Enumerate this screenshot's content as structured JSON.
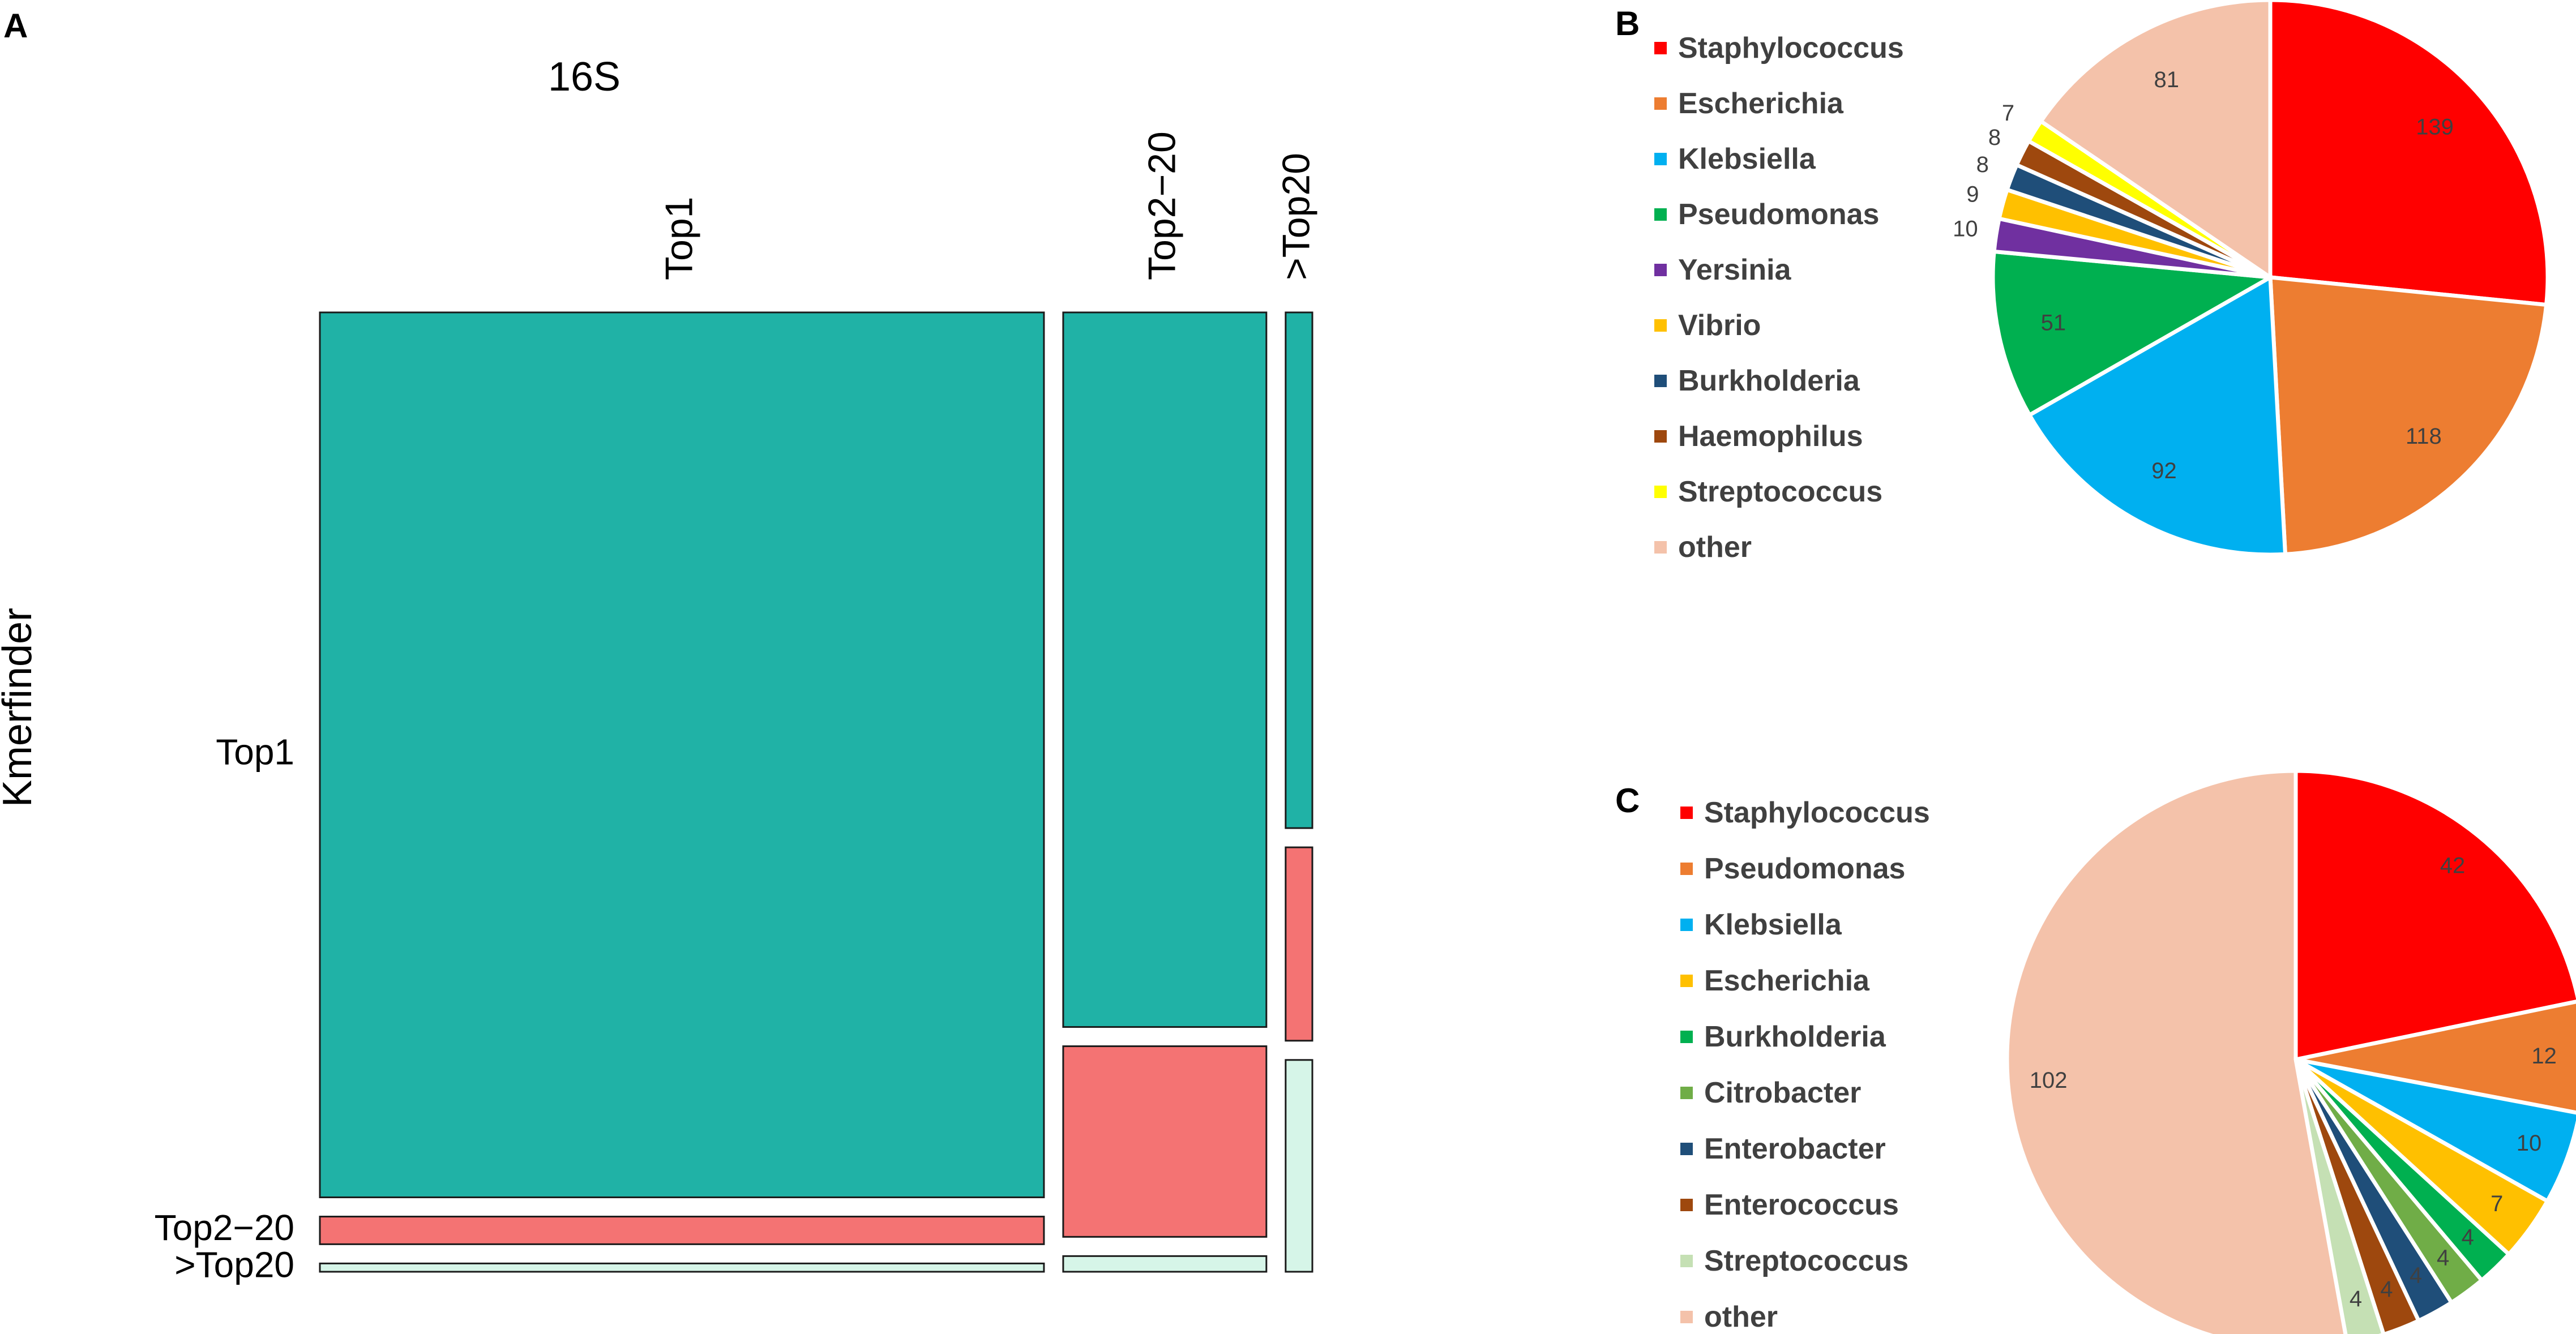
{
  "chart_data": [
    {
      "panel_label": "A",
      "type": "mosaic",
      "title": "16S",
      "ylabel": "Kmerfinder",
      "column_categories": [
        "Top1",
        "Top2−20",
        ">Top20"
      ],
      "row_categories": [
        "Top1",
        "Top2−20",
        ">Top20"
      ],
      "column_shares": [
        0.759,
        0.213,
        0.028
      ],
      "row_shares_by_column": [
        [
          0.961,
          0.03,
          0.009
        ],
        [
          0.776,
          0.207,
          0.017
        ],
        [
          0.56,
          0.21,
          0.23
        ]
      ],
      "colors": {
        "Top1": "#20b2a6",
        "Top2−20": "#f47373",
        ">Top20": "#d6f5e8"
      }
    },
    {
      "panel_label": "B",
      "type": "pie",
      "categories": [
        "Staphylococcus",
        "Escherichia",
        "Klebsiella",
        "Pseudomonas",
        "Yersinia",
        "Vibrio",
        "Burkholderia",
        "Haemophilus",
        "Streptococcus",
        "other"
      ],
      "values": [
        139,
        118,
        92,
        51,
        10,
        9,
        8,
        8,
        7,
        81
      ],
      "labels": [
        "139",
        "118",
        "92",
        "51",
        "10",
        "9",
        "8",
        "8",
        "7",
        "81"
      ],
      "colors": [
        "#ff0000",
        "#ed7d31",
        "#00b0f0",
        "#00b050",
        "#7030a0",
        "#ffc000",
        "#1f4e79",
        "#9e480e",
        "#ffff00",
        "#f4c2aa"
      ],
      "legend_position": "left"
    },
    {
      "panel_label": "C",
      "type": "pie",
      "categories": [
        "Staphylococcus",
        "Pseudomonas",
        "Klebsiella",
        "Escherichia",
        "Burkholderia",
        "Citrobacter",
        "Enterobacter",
        "Enterococcus",
        "Streptococcus",
        "other"
      ],
      "values": [
        42,
        12,
        10,
        7,
        4,
        4,
        4,
        4,
        4,
        102
      ],
      "labels": [
        "42",
        "12",
        "10",
        "7",
        "4",
        "4",
        "4",
        "4",
        "4",
        "102"
      ],
      "colors": [
        "#ff0000",
        "#ed7d31",
        "#00b0f0",
        "#ffc000",
        "#00b050",
        "#70ad47",
        "#1f4e79",
        "#9e480e",
        "#c5e0b4",
        "#f4c2aa"
      ],
      "legend_position": "left"
    }
  ]
}
